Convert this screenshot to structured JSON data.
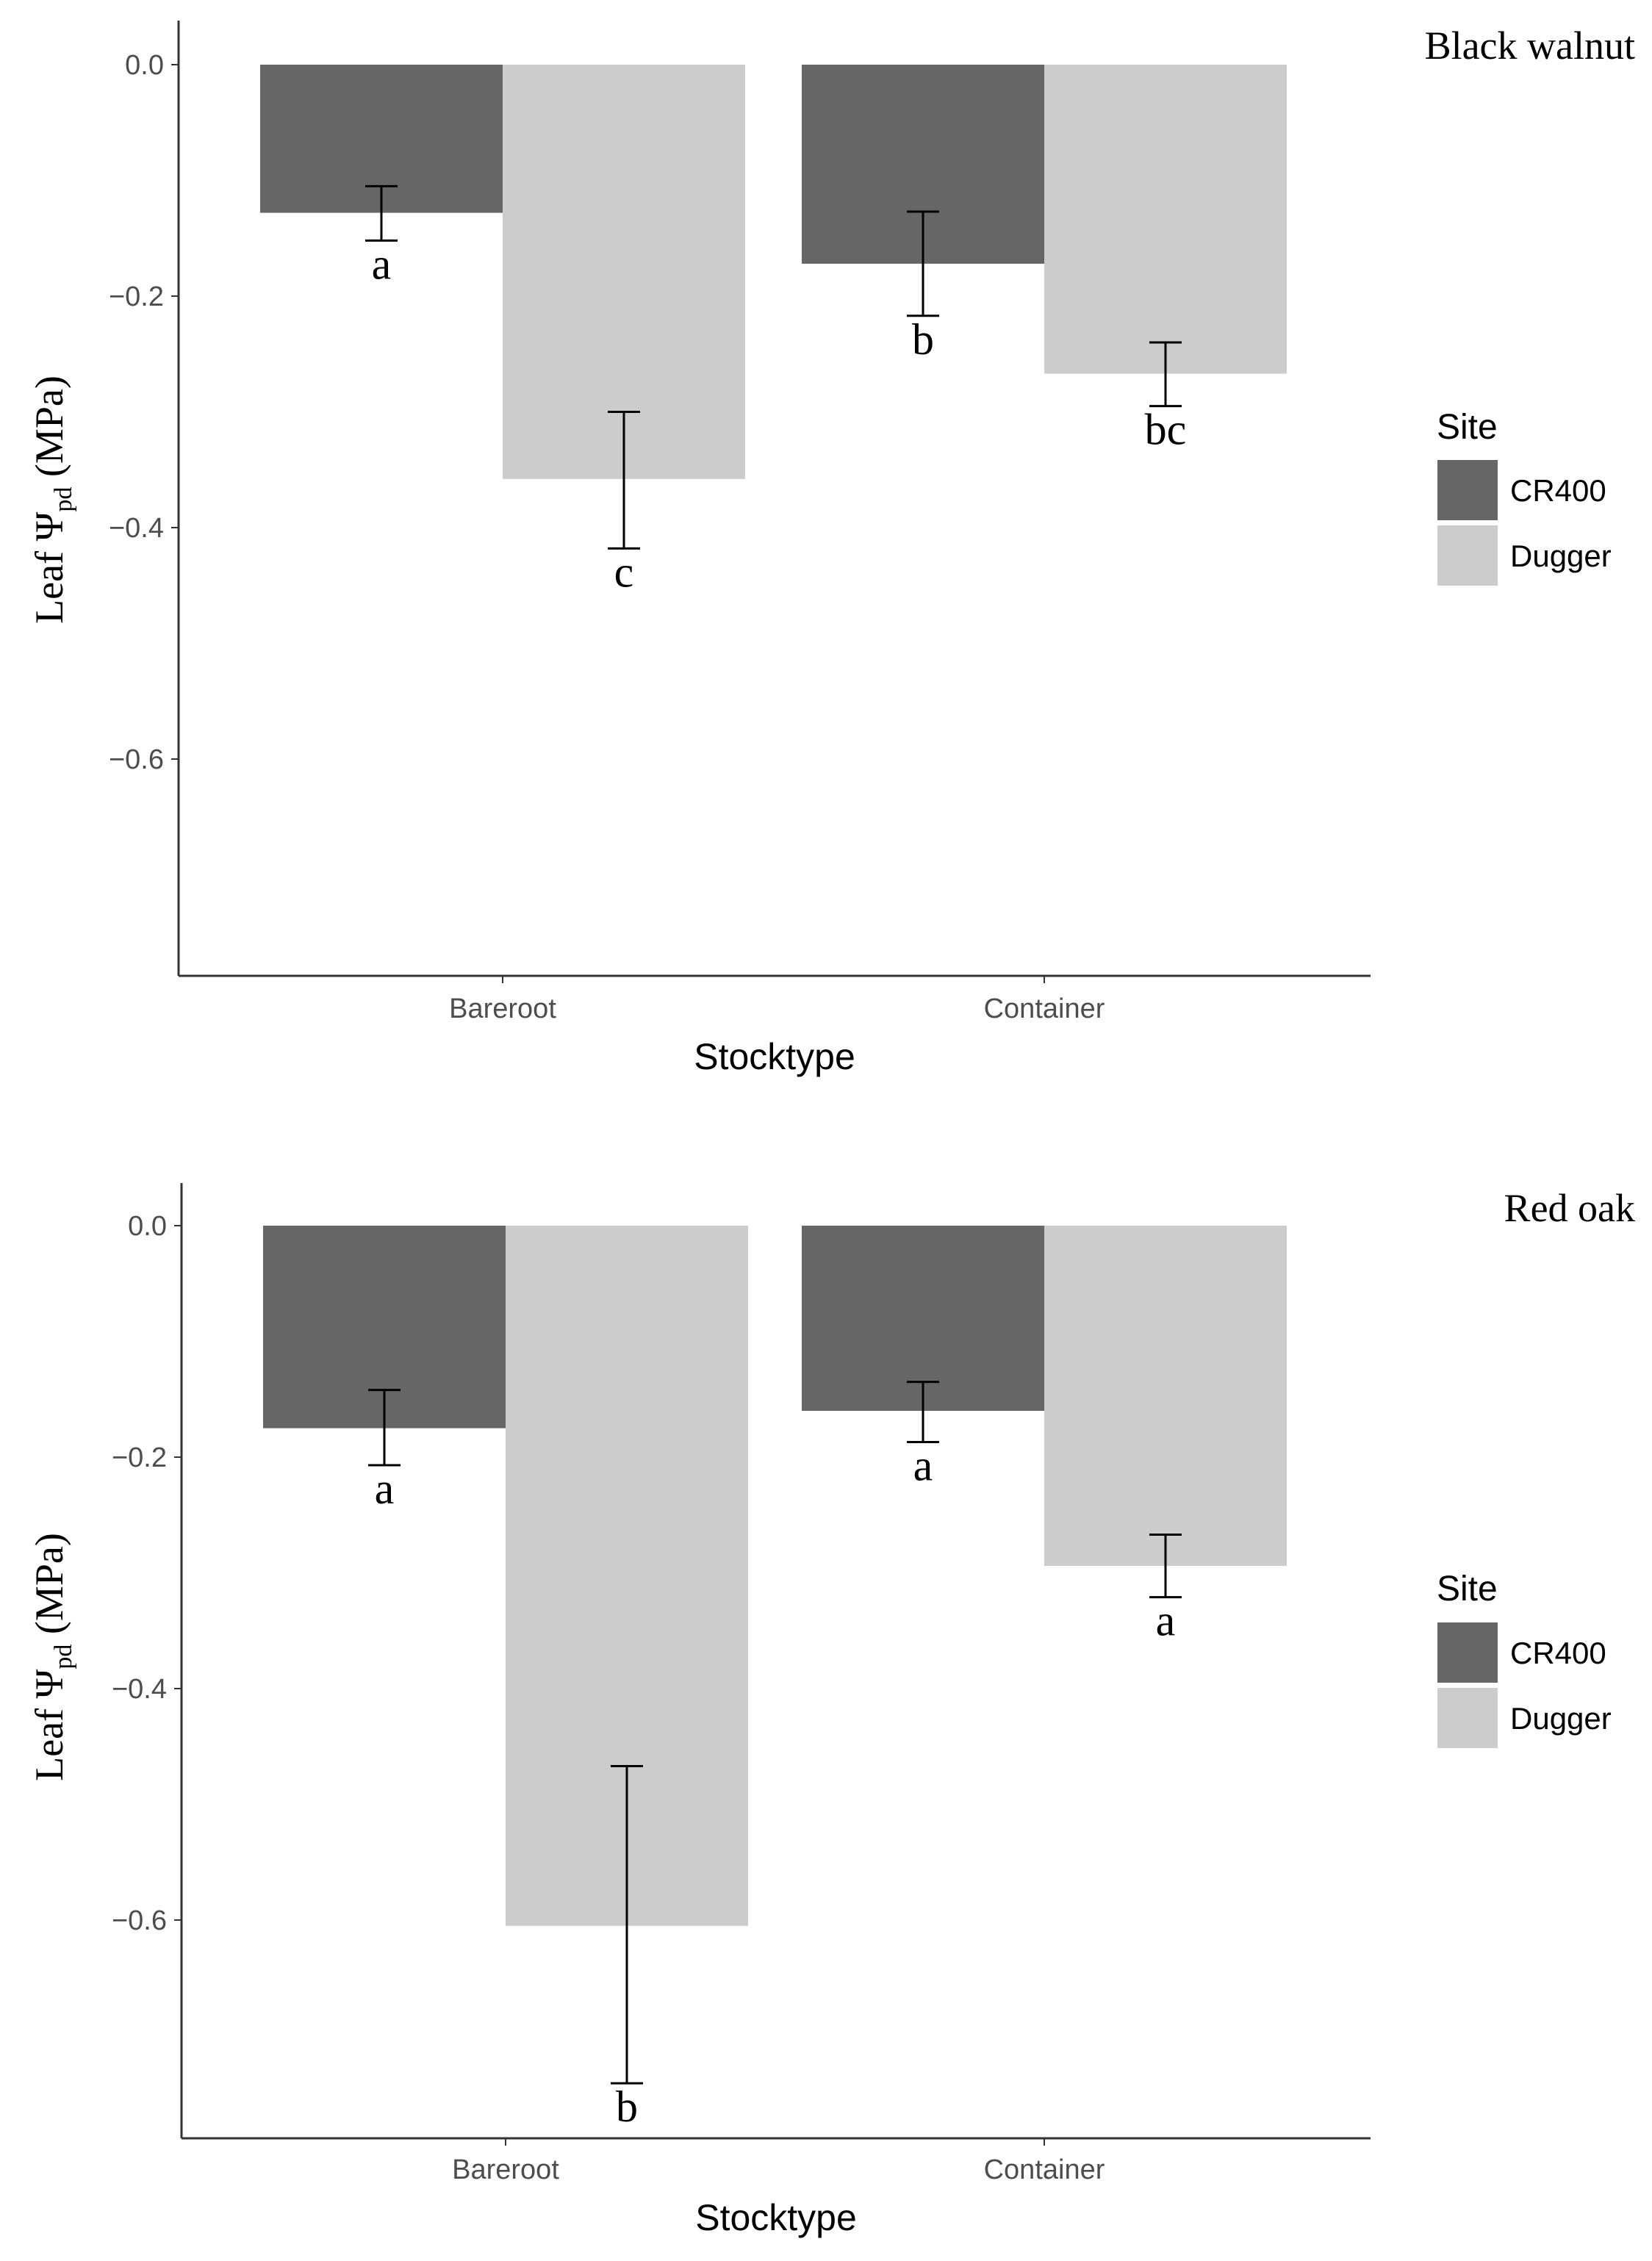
{
  "chart_data": [
    {
      "type": "bar",
      "title": "Black walnut",
      "xlabel": "Stocktype",
      "ylabel": {
        "prefix": "Leaf Ψ",
        "subscript": "pd",
        "suffix": " (MPa)"
      },
      "categories": [
        "Bareroot",
        "Container"
      ],
      "ylim": [
        -0.79,
        0.0
      ],
      "yticks": [
        0.0,
        -0.2,
        -0.4,
        -0.6
      ],
      "ytick_labels": [
        "0.0",
        "−0.2",
        "−0.4",
        "−0.6"
      ],
      "legend": {
        "title": "Site",
        "position": "right"
      },
      "series": [
        {
          "name": "CR400",
          "color": "#666666",
          "values": [
            -0.128,
            -0.172
          ],
          "err_upper": [
            -0.105,
            -0.127
          ],
          "err_lower": [
            -0.152,
            -0.217
          ],
          "labels": [
            "a",
            "b"
          ]
        },
        {
          "name": "Dugger",
          "color": "#cccccc",
          "values": [
            -0.358,
            -0.267
          ],
          "err_upper": [
            -0.3,
            -0.24
          ],
          "err_lower": [
            -0.418,
            -0.295
          ],
          "labels": [
            "c",
            "bc"
          ]
        }
      ]
    },
    {
      "type": "bar",
      "title": "Red oak",
      "xlabel": "Stocktype",
      "ylabel": {
        "prefix": "Leaf Ψ",
        "subscript": "pd",
        "suffix": " (MPa)"
      },
      "categories": [
        "Bareroot",
        "Container"
      ],
      "ylim": [
        -0.785,
        0.0
      ],
      "yticks": [
        0.0,
        -0.2,
        -0.4,
        -0.6
      ],
      "ytick_labels": [
        "0.0",
        "−0.2",
        "−0.4",
        "−0.6"
      ],
      "legend": {
        "title": "Site",
        "position": "right"
      },
      "series": [
        {
          "name": "CR400",
          "color": "#666666",
          "values": [
            -0.175,
            -0.16
          ],
          "err_upper": [
            -0.142,
            -0.135
          ],
          "err_lower": [
            -0.207,
            -0.187
          ],
          "labels": [
            "a",
            "a"
          ]
        },
        {
          "name": "Dugger",
          "color": "#cccccc",
          "values": [
            -0.605,
            -0.294
          ],
          "err_upper": [
            -0.467,
            -0.267
          ],
          "err_lower": [
            -0.741,
            -0.321
          ],
          "labels": [
            "b",
            "a"
          ]
        }
      ]
    }
  ]
}
